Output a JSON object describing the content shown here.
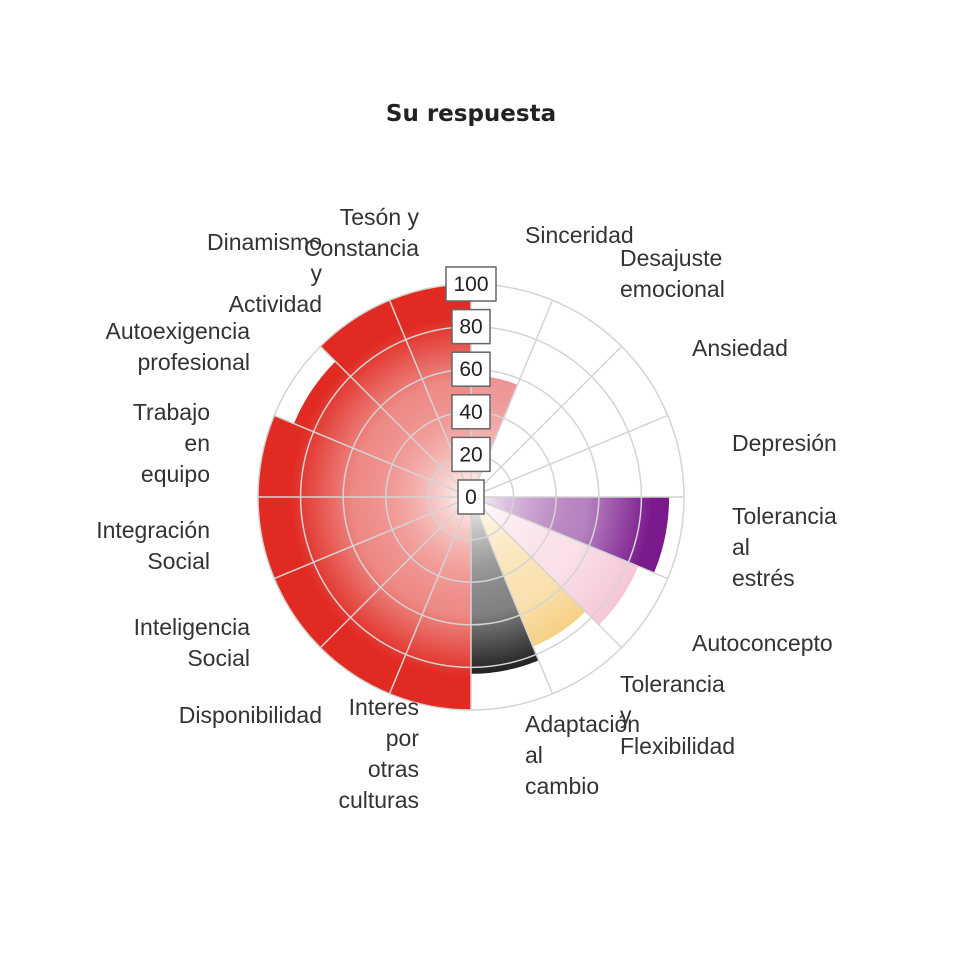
{
  "chart_data": {
    "type": "polar-area",
    "title": "Su respuesta",
    "r_range": [
      0,
      100
    ],
    "r_ticks": [
      "0",
      "20",
      "40",
      "60",
      "80",
      "100"
    ],
    "grid": true,
    "categories": [
      {
        "label": "Sinceridad",
        "value": 57,
        "color": "#e04040"
      },
      {
        "label": "Desajuste emocional",
        "value": 0,
        "color": "#e04040"
      },
      {
        "label": "Ansiedad",
        "value": 0,
        "color": "#e04040"
      },
      {
        "label": "Depresión",
        "value": 0,
        "color": "#e04040"
      },
      {
        "label": "Tolerancia al estrés",
        "value": 93,
        "color": "#7a1a8c"
      },
      {
        "label": "Autoconcepto",
        "value": 85,
        "color": "#f5c6d6"
      },
      {
        "label": "Tolerancia y Flexibilidad",
        "value": 76,
        "color": "#f5c870"
      },
      {
        "label": "Adaptación al cambio",
        "value": 83,
        "color": "#1a1a1a"
      },
      {
        "label": "Interes por otras culturas",
        "value": 100,
        "color": "#e02a22"
      },
      {
        "label": "Disponibilidad",
        "value": 100,
        "color": "#e02a22"
      },
      {
        "label": "Inteligencia Social",
        "value": 100,
        "color": "#e02a22"
      },
      {
        "label": "Integración Social",
        "value": 100,
        "color": "#e02a22"
      },
      {
        "label": "Trabajo en equipo",
        "value": 100,
        "color": "#e02a22"
      },
      {
        "label": "Autoexigencia profesional",
        "value": 90,
        "color": "#e02a22"
      },
      {
        "label": "Dinamismo y Actividad",
        "value": 100,
        "color": "#e02a22"
      },
      {
        "label": "Tesón y Constancia",
        "value": 100,
        "color": "#e02a22"
      }
    ]
  }
}
